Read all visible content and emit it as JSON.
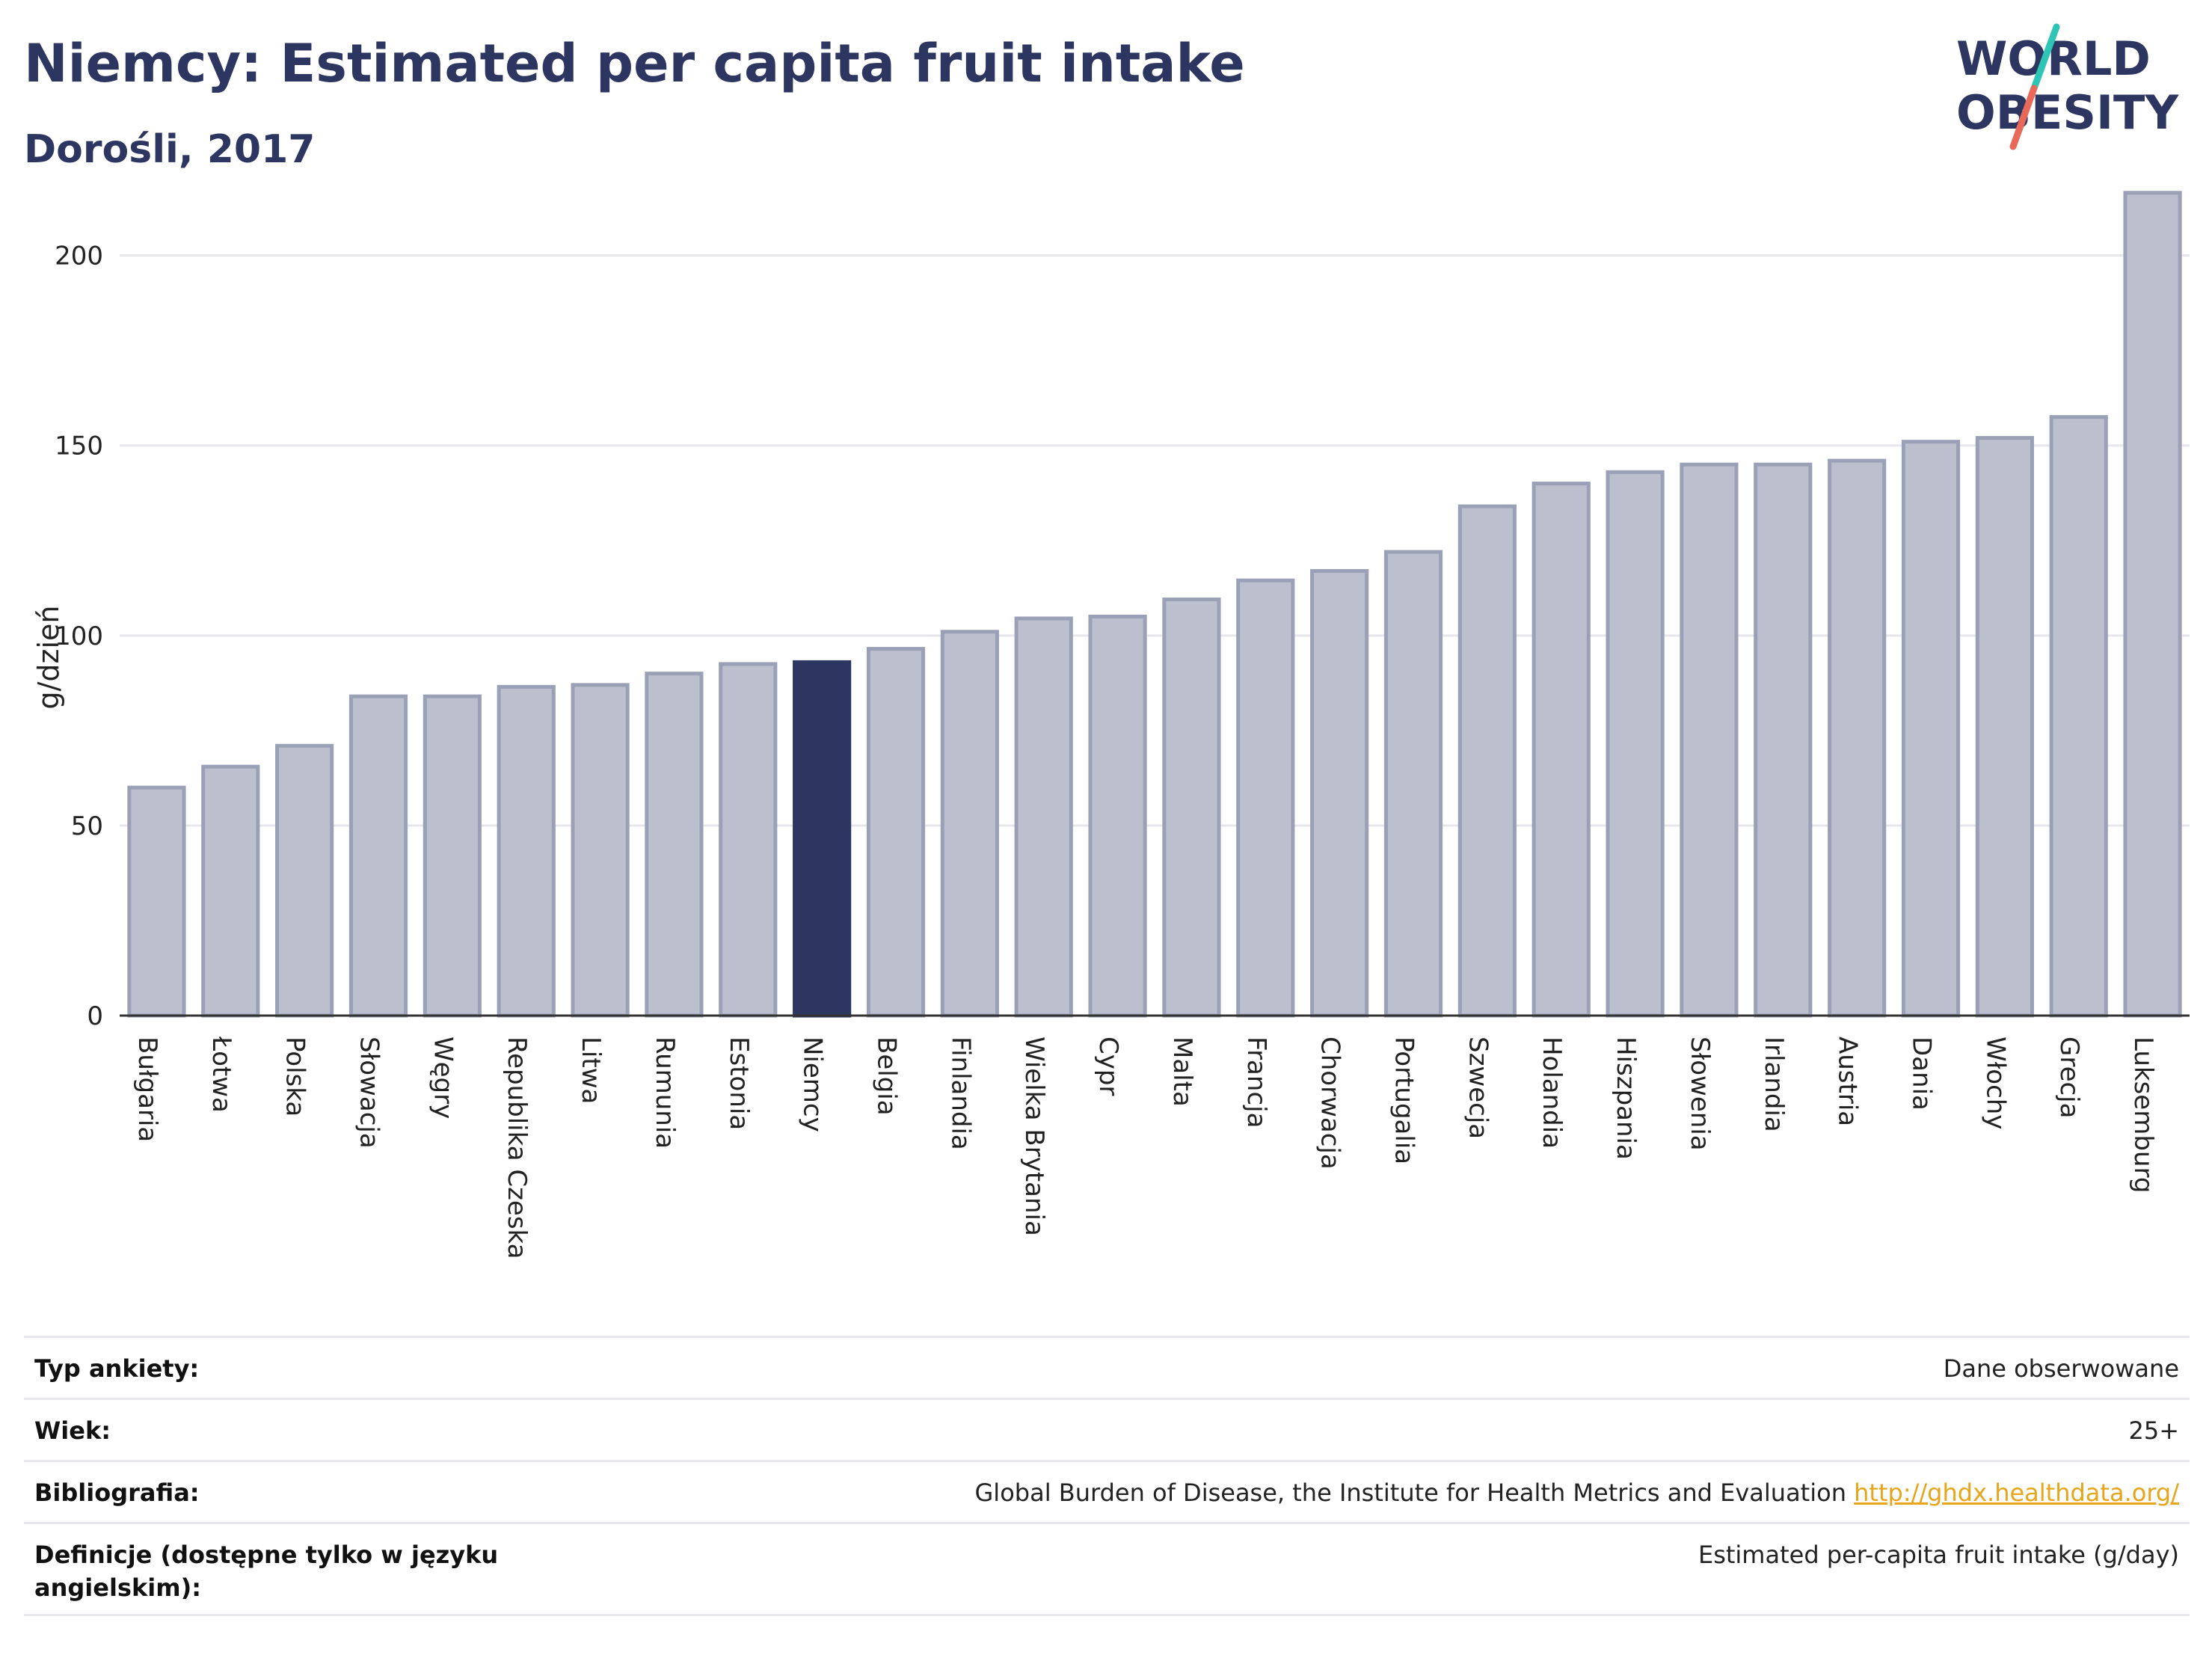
{
  "header": {
    "title": "Niemcy: Estimated per capita fruit intake",
    "subtitle": "Dorośli, 2017"
  },
  "logo": {
    "line1": "WORLD",
    "line2": "OBESITY",
    "colors": {
      "text": "#2d3561",
      "slash_teal": "#2ec4b6",
      "slash_red": "#e8685a"
    }
  },
  "chart_data": {
    "type": "bar",
    "ylabel": "g/dzień",
    "ylim": [
      0,
      220
    ],
    "yticks": [
      0,
      50,
      100,
      150,
      200
    ],
    "grid": true,
    "highlight": "Niemcy",
    "colors": {
      "bar": "#bcc0ce",
      "bar_edge": "#9aa0b6",
      "highlight": "#2d3561",
      "grid": "#e6e6ec"
    },
    "categories": [
      "Bułgaria",
      "Łotwa",
      "Polska",
      "Słowacja",
      "Węgry",
      "Republika Czeska",
      "Litwa",
      "Rumunia",
      "Estonia",
      "Niemcy",
      "Belgia",
      "Finlandia",
      "Wielka Brytania",
      "Cypr",
      "Malta",
      "Francja",
      "Chorwacja",
      "Portugalia",
      "Szwecja",
      "Holandia",
      "Hiszpania",
      "Słowenia",
      "Irlandia",
      "Austria",
      "Dania",
      "Włochy",
      "Grecja",
      "Luksemburg"
    ],
    "values": [
      60,
      65.5,
      71,
      84,
      84,
      86.5,
      87,
      90,
      92.5,
      93,
      96.5,
      101,
      104.5,
      105,
      109.5,
      114.5,
      117,
      122,
      134,
      140,
      143,
      145,
      145,
      146,
      151,
      152,
      157.5,
      216.5
    ]
  },
  "info": {
    "rows": [
      {
        "label": "Typ ankiety:",
        "value": "Dane obserwowane"
      },
      {
        "label": "Wiek:",
        "value": "25+"
      },
      {
        "label": "Bibliografia:",
        "value": "Global Burden of Disease, the Institute for Health Metrics and Evaluation",
        "link": "http://ghdx.healthdata.org/"
      },
      {
        "label": "Definicje (dostępne tylko w języku angielskim):",
        "value": "Estimated per-capita fruit intake (g/day)"
      }
    ]
  }
}
